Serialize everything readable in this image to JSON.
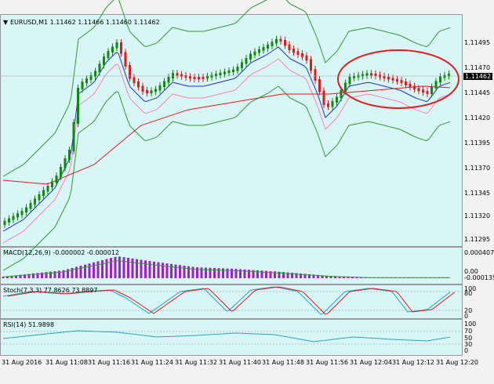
{
  "main": {
    "title": "EURUSD,M1  1.11462 1.11466 1.11460 1.11462",
    "price_ticks": [
      "1.11495",
      "1.11470",
      "1.11445",
      "1.11420",
      "1.11395",
      "1.11370",
      "1.11345",
      "1.11320",
      "1.11295"
    ],
    "current_price": "1.11462"
  },
  "macd": {
    "title": "MACD(12,26,9) -0.000002 -0.000012",
    "ticks": [
      "0.000407",
      "0.00",
      "-0.000135"
    ]
  },
  "stoch": {
    "title": "Stoch(7,3,3) 77.8626 73.8897",
    "ticks": [
      "100",
      "80",
      "20",
      "0"
    ]
  },
  "rsi": {
    "title": "RSI(14) 51.9898",
    "ticks": [
      "100",
      "70",
      "50",
      "30",
      "0"
    ]
  },
  "time_axis": [
    "31 Aug 2016",
    "31 Aug 11:08",
    "31 Aug 11:16",
    "31 Aug 11:24",
    "31 Aug 11:32",
    "31 Aug 11:40",
    "31 Aug 11:48",
    "31 Aug 11:56",
    "31 Aug 12:04",
    "31 Aug 12:12",
    "31 Aug 12:20"
  ],
  "colors": {
    "background": "#d8f6f6",
    "bull": "#0f8a0f",
    "bear": "#e01b1b",
    "bands": "#2f9b2f",
    "ma_fast": "#1f2fd6",
    "ma_slow": "#e01b1b",
    "ma_mid": "#ff7fbf",
    "macd_hist": "#a020c8",
    "annotation": "#e02020"
  }
}
